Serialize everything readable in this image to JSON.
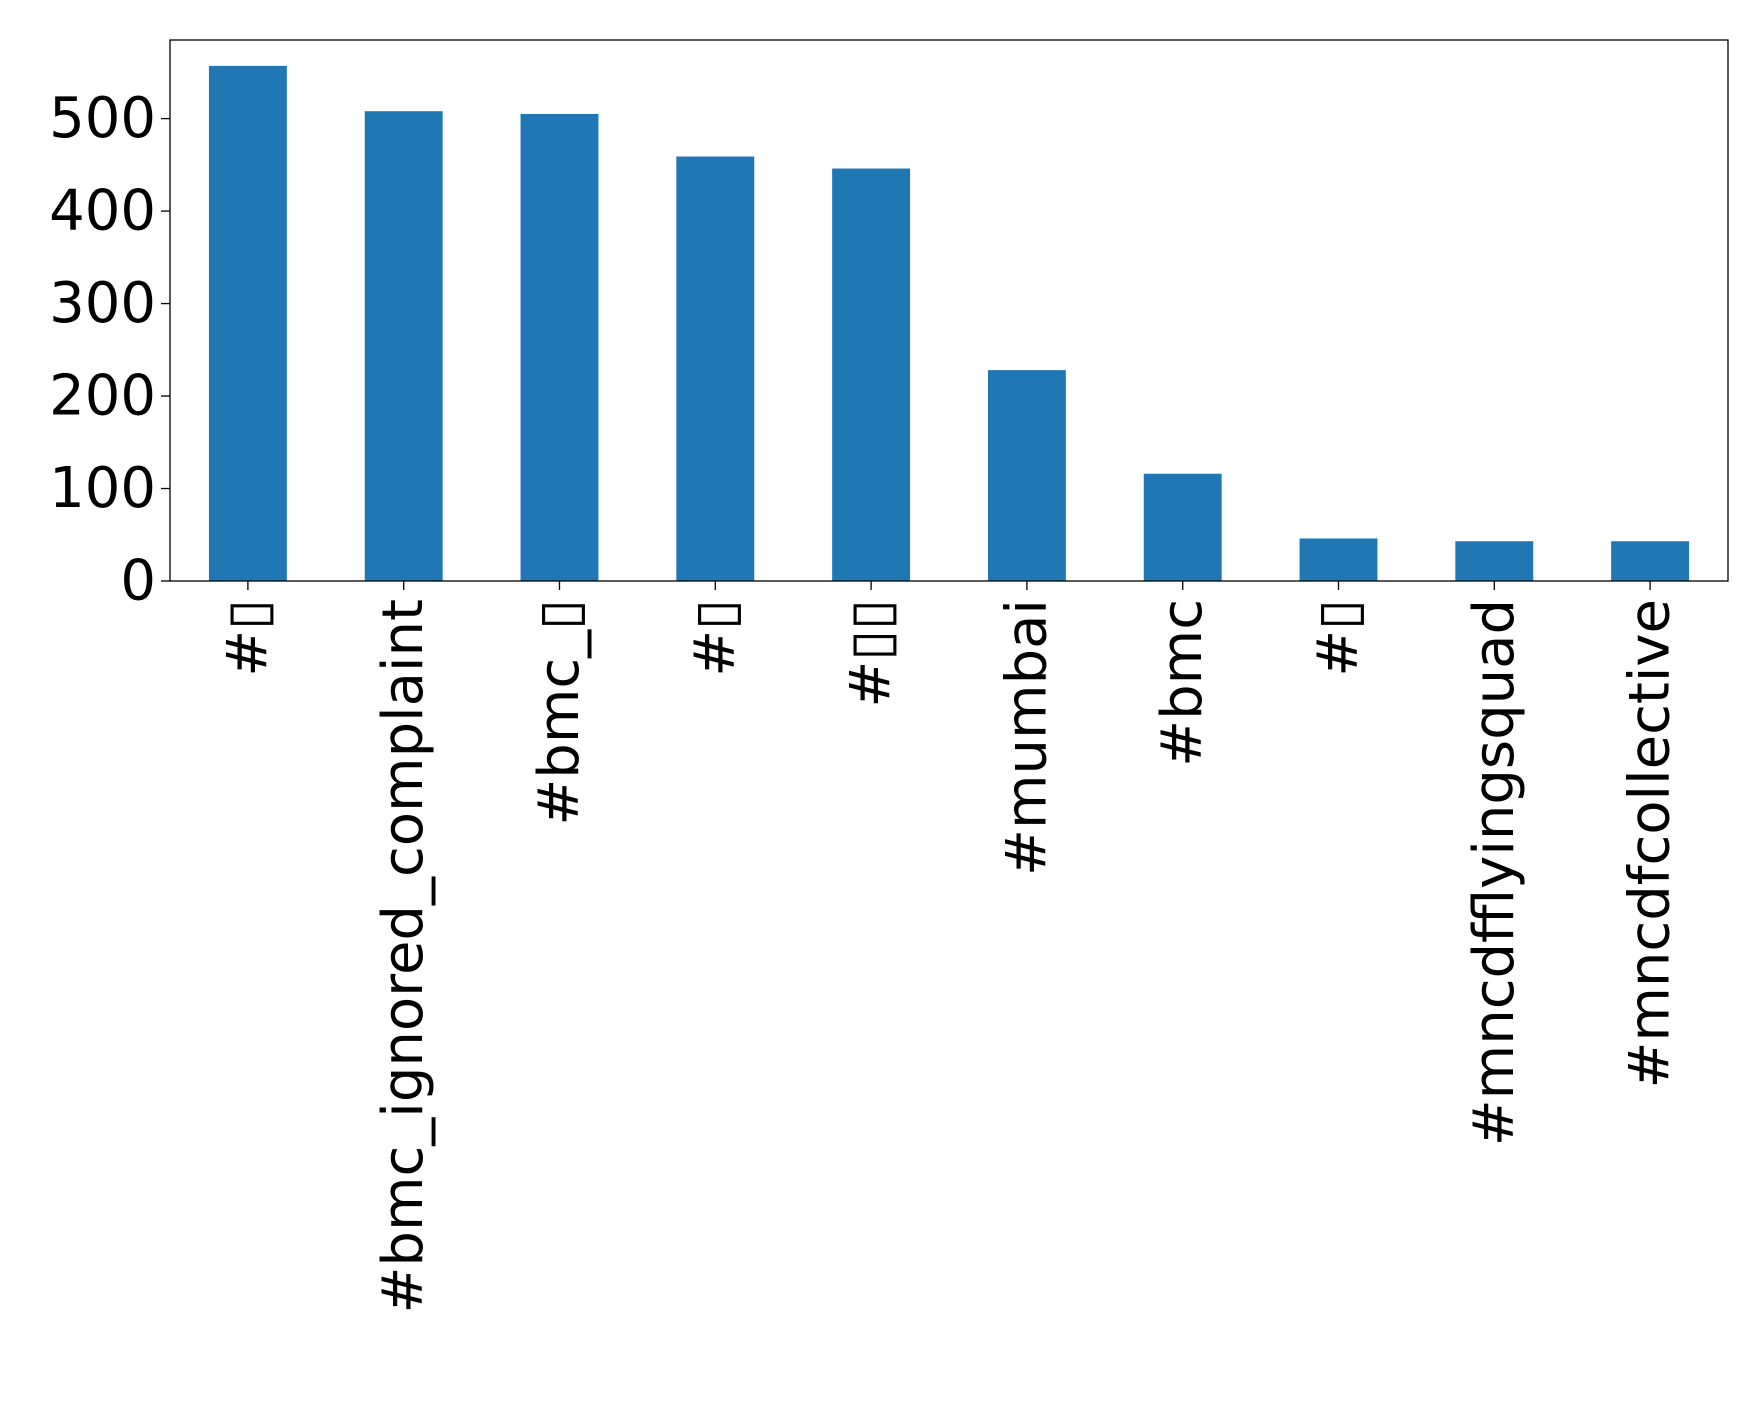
{
  "chart_data": {
    "type": "bar",
    "title": "",
    "xlabel": "",
    "ylabel": "",
    "categories": [
      "#▯",
      "#bmc_ignored_complaint",
      "#bmc_▯",
      "#▯",
      "#▯▯",
      "#mumbai",
      "#bmc",
      "#▯",
      "#mncdfflyingsquad",
      "#mncdfcollective"
    ],
    "values": [
      557,
      508,
      505,
      459,
      446,
      228,
      116,
      46,
      43,
      43
    ],
    "ylim": [
      0,
      585
    ],
    "yticks": [
      0,
      100,
      200,
      300,
      400,
      500
    ],
    "bar_color": "#1f77b4",
    "grid": false,
    "legend": "none"
  }
}
